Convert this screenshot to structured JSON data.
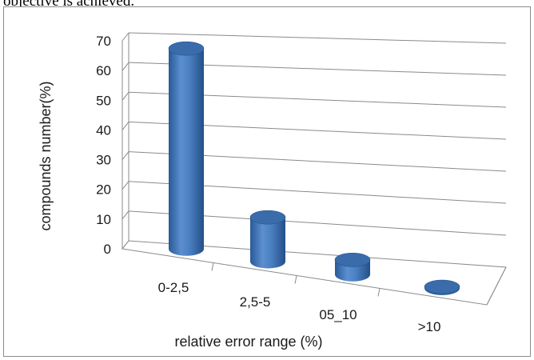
{
  "page": {
    "caption_fragment": "objective is achieved."
  },
  "chart_data": {
    "type": "bar",
    "style": "3d-cylinder",
    "categories": [
      "0-2,5",
      "2,5-5",
      "05_10",
      ">10"
    ],
    "values": [
      68,
      15,
      5,
      0.5
    ],
    "ylabel": "compounds number(%)",
    "xlabel": "relative error range (%)",
    "ylim": [
      0,
      70
    ],
    "yticks": [
      0,
      10,
      20,
      30,
      40,
      50,
      60,
      70
    ],
    "grid": true,
    "legend": "none",
    "colors": {
      "bar": "#4f81bd",
      "bar_dark": "#2c5a96",
      "bar_top": "#3a6cab",
      "grid": "#8a8a8a"
    }
  }
}
